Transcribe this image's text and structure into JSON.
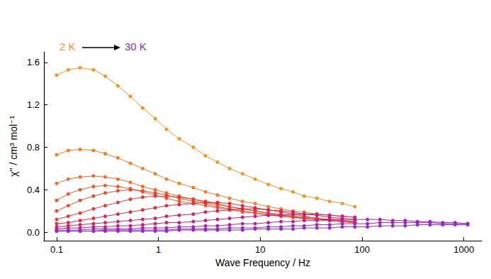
{
  "chart_data": {
    "type": "line",
    "marker": "circle",
    "log": "x",
    "grid": false,
    "xlabel": "Wave Frequency / Hz",
    "ylabel": "χ'' / cm³ mol⁻¹",
    "xlim": [
      0.075,
      1500
    ],
    "xticks": [
      0.1,
      1,
      10,
      100,
      1000
    ],
    "ylim": [
      -0.08,
      1.7
    ],
    "yticks": [
      {
        "value": 0,
        "label": "0.0"
      },
      0.4,
      0.8,
      1.2,
      1.6
    ],
    "annotations": [
      {
        "text": "2 K",
        "color": "#f7931e"
      },
      {
        "text": "30 K",
        "color": "#8e2bd6"
      }
    ],
    "x": [
      0.1,
      0.13,
      0.17,
      0.23,
      0.3,
      0.4,
      0.53,
      0.7,
      0.93,
      1.2,
      1.6,
      2.2,
      2.9,
      3.8,
      5.0,
      6.7,
      8.9,
      12,
      16,
      21,
      27,
      36,
      48,
      64,
      85,
      113,
      150,
      200,
      265,
      350,
      465,
      620,
      820,
      1090
    ],
    "series": [
      {
        "color": "#f7931e",
        "values": [
          1.48,
          1.53,
          1.55,
          1.53,
          1.47,
          1.38,
          1.28,
          1.17,
          1.07,
          0.97,
          0.88,
          0.8,
          0.72,
          0.66,
          0.6,
          0.55,
          0.5,
          0.45,
          0.41,
          0.38,
          0.34,
          0.32,
          0.29,
          0.27,
          0.24,
          null,
          null,
          null,
          null,
          null,
          null,
          null,
          null,
          null
        ]
      },
      {
        "color": "#f57c20",
        "values": [
          0.73,
          0.77,
          0.78,
          0.77,
          0.74,
          0.7,
          0.65,
          0.6,
          0.55,
          0.5,
          0.46,
          0.42,
          0.38,
          0.35,
          0.32,
          0.29,
          0.27,
          0.24,
          0.22,
          0.2,
          0.19,
          0.17,
          0.16,
          0.15,
          0.14,
          null,
          null,
          null,
          null,
          null,
          null,
          null,
          null,
          null
        ]
      },
      {
        "color": "#f26a24",
        "values": [
          0.46,
          0.5,
          0.52,
          0.53,
          0.52,
          0.5,
          0.47,
          0.43,
          0.4,
          0.37,
          0.34,
          0.31,
          0.28,
          0.26,
          0.24,
          0.22,
          0.2,
          0.18,
          0.17,
          0.15,
          0.14,
          0.13,
          0.12,
          0.11,
          0.1,
          null,
          null,
          null,
          null,
          null,
          null,
          null,
          null,
          null
        ]
      },
      {
        "color": "#ef5a27",
        "values": [
          0.3,
          0.36,
          0.4,
          0.43,
          0.44,
          0.43,
          0.41,
          0.38,
          0.35,
          0.32,
          0.29,
          0.27,
          0.25,
          0.23,
          0.21,
          0.19,
          0.18,
          0.16,
          0.15,
          0.14,
          0.13,
          0.12,
          0.11,
          0.1,
          0.09,
          null,
          null,
          null,
          null,
          null,
          null,
          null,
          null,
          null
        ]
      },
      {
        "color": "#ec4a2b",
        "values": [
          0.2,
          0.25,
          0.3,
          0.34,
          0.37,
          0.39,
          0.4,
          0.39,
          0.37,
          0.35,
          0.32,
          0.29,
          0.27,
          0.24,
          0.22,
          0.2,
          0.18,
          0.17,
          0.15,
          0.14,
          0.13,
          0.12,
          0.11,
          0.1,
          0.09,
          null,
          null,
          null,
          null,
          null,
          null,
          null,
          null,
          null
        ]
      },
      {
        "color": "#e83a30",
        "values": [
          0.12,
          0.15,
          0.18,
          0.22,
          0.25,
          0.28,
          0.31,
          0.33,
          0.34,
          0.34,
          0.33,
          0.31,
          0.29,
          0.27,
          0.24,
          0.22,
          0.2,
          0.18,
          0.16,
          0.15,
          0.13,
          0.12,
          0.11,
          0.1,
          0.09,
          null,
          null,
          null,
          null,
          null,
          null,
          null,
          null,
          null
        ]
      },
      {
        "color": "#e02b3f",
        "values": [
          0.08,
          0.09,
          0.11,
          0.13,
          0.15,
          0.17,
          0.19,
          0.21,
          0.23,
          0.25,
          0.26,
          0.27,
          0.28,
          0.28,
          0.27,
          0.25,
          0.23,
          0.21,
          0.19,
          0.17,
          0.15,
          0.13,
          0.12,
          0.11,
          0.1,
          null,
          null,
          null,
          null,
          null,
          null,
          null,
          null,
          null
        ]
      },
      {
        "color": "#d4225c",
        "values": [
          0.05,
          0.06,
          0.07,
          0.08,
          0.09,
          0.1,
          0.11,
          0.12,
          0.13,
          0.15,
          0.16,
          0.17,
          0.19,
          0.2,
          0.21,
          0.22,
          0.22,
          0.21,
          0.2,
          0.19,
          0.17,
          0.16,
          0.14,
          0.13,
          0.12,
          null,
          null,
          null,
          null,
          null,
          null,
          null,
          null,
          null
        ]
      },
      {
        "color": "#c41f7c",
        "values": [
          0.03,
          0.04,
          0.04,
          0.05,
          0.05,
          0.06,
          0.06,
          0.07,
          0.08,
          0.09,
          0.09,
          0.1,
          0.11,
          0.12,
          0.13,
          0.14,
          0.15,
          0.16,
          0.16,
          0.17,
          0.17,
          0.17,
          0.16,
          0.15,
          0.14,
          null,
          null,
          null,
          null,
          null,
          null,
          null,
          null,
          null
        ]
      },
      {
        "color": "#b023a0",
        "values": [
          0.02,
          0.02,
          0.02,
          0.03,
          0.03,
          0.03,
          0.03,
          0.04,
          0.04,
          0.04,
          0.05,
          0.05,
          0.06,
          0.06,
          0.07,
          0.08,
          0.08,
          0.09,
          0.1,
          0.1,
          0.11,
          0.11,
          0.12,
          0.12,
          0.12,
          0.12,
          0.12,
          0.11,
          0.11,
          0.1,
          0.1,
          0.09,
          0.09,
          0.08
        ]
      },
      {
        "color": "#9d27bf",
        "values": [
          0.01,
          0.01,
          0.01,
          0.01,
          0.02,
          0.02,
          0.02,
          0.02,
          0.02,
          0.02,
          0.03,
          0.03,
          0.03,
          0.03,
          0.04,
          0.04,
          0.04,
          0.05,
          0.05,
          0.06,
          0.06,
          0.07,
          0.07,
          0.08,
          0.08,
          0.08,
          0.09,
          0.09,
          0.09,
          0.09,
          0.09,
          0.08,
          0.08,
          0.08
        ]
      },
      {
        "color": "#8e2bd6",
        "values": [
          0.01,
          0.01,
          0.01,
          0.01,
          0.01,
          0.01,
          0.01,
          0.01,
          0.01,
          0.01,
          0.02,
          0.02,
          0.02,
          0.02,
          0.02,
          0.02,
          0.03,
          0.03,
          0.03,
          0.03,
          0.04,
          0.04,
          0.04,
          0.05,
          0.05,
          0.05,
          0.06,
          0.06,
          0.06,
          0.07,
          0.07,
          0.07,
          0.07,
          0.07
        ]
      }
    ]
  }
}
